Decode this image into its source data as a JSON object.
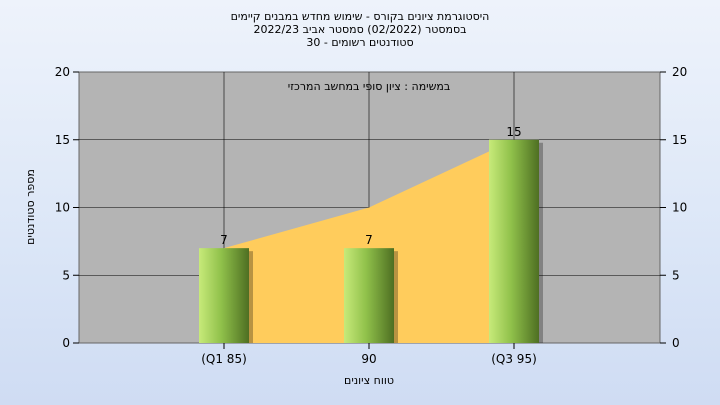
{
  "titles": {
    "line1": "היסטוגרמת ציונים בקורס - שימוש מחדש במבנים קיימים",
    "line2": "בסמסטר  (02/2022)  סמסטר אביב 2022/23",
    "line3": "סטודנטים רשומים - 30"
  },
  "chart_data": {
    "type": "bar",
    "categories": [
      "(Q1 85)",
      "90",
      "(Q3 95)"
    ],
    "values": [
      7,
      7,
      15
    ],
    "area_values": [
      7,
      10,
      15
    ],
    "annotation": "במשימה : ציון סופי במחשב המרכזי",
    "xlabel": "טווח ציונים",
    "ylabel": "מספר סטודנטים",
    "ylim": [
      0,
      20
    ],
    "yticks": [
      0,
      5,
      10,
      15,
      20
    ],
    "grid": true,
    "colors": {
      "plot_bg": "#b4b4b4",
      "area": "#ffcc5c",
      "bar_light": "#c7ea7a",
      "bar_mid": "#8fc04a",
      "bar_dark": "#4e6f22"
    }
  }
}
